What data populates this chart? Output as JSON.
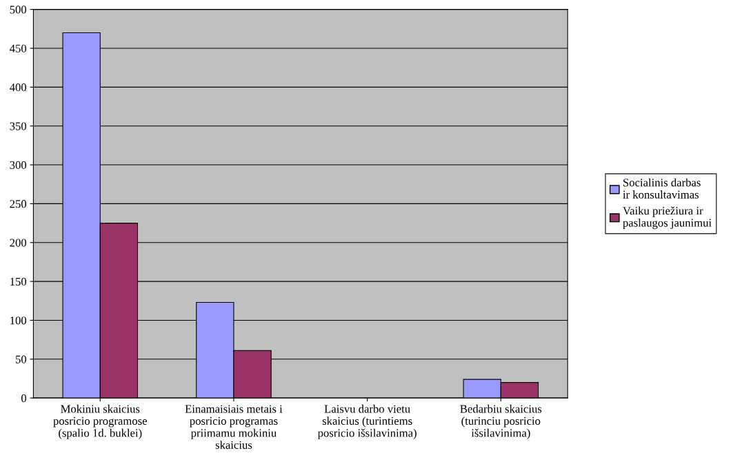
{
  "chart_data": {
    "type": "bar",
    "categories": [
      "Mokiniu skaicius posricio programose (spalio 1d. buklei)",
      "Einamaisiais metais i posricio programas priimamu mokiniu skaicius",
      "Laisvu darbo vietu skaicius (turintiems posricio išsilavinima)",
      "Bedarbiu skaicius (turinciu posricio išsilavinima)"
    ],
    "series": [
      {
        "name": "Socialinis darbas ir konsultavimas",
        "color": "#9999ff",
        "values": [
          470,
          123,
          null,
          24
        ]
      },
      {
        "name": "Vaiku priežiura ir paslaugos jaunimui",
        "color": "#993366",
        "values": [
          225,
          61,
          null,
          20
        ]
      }
    ],
    "ylim": [
      0,
      500
    ],
    "yticks": [
      0,
      50,
      100,
      150,
      200,
      250,
      300,
      350,
      400,
      450,
      500
    ],
    "grid": "y",
    "legend": "right"
  }
}
